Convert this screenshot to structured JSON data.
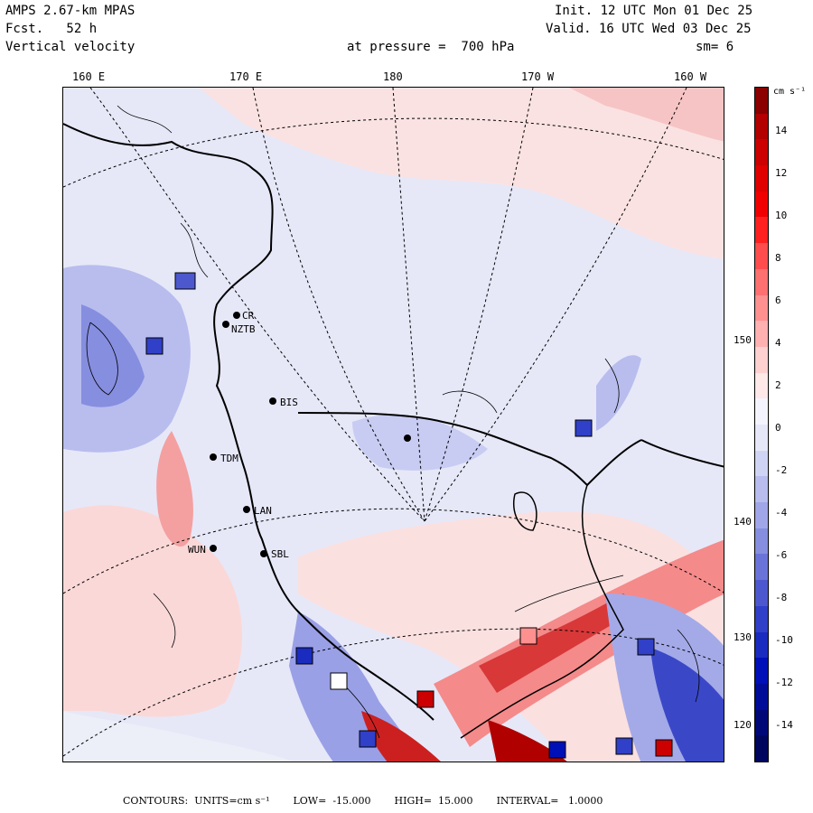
{
  "header": {
    "model": "AMPS 2.67-km MPAS",
    "forecast": "Fcst.   52 h",
    "field": "Vertical velocity",
    "init": "Init. 12 UTC Mon 01 Dec 25",
    "valid": "Valid. 16 UTC Wed 03 Dec 25",
    "pressure": "at pressure =  700 hPa",
    "smoothing": "sm= 6"
  },
  "longitude_labels": [
    "160 E",
    "170 E",
    "180",
    "170 W",
    "160 W"
  ],
  "latitude_labels": [
    "150 W",
    "140 W",
    "130 W",
    "120 W"
  ],
  "stations": [
    {
      "id": "CR",
      "label": "CR"
    },
    {
      "id": "NZTB",
      "label": "NZTB"
    },
    {
      "id": "BIS",
      "label": "BIS"
    },
    {
      "id": "TDM",
      "label": "TDM"
    },
    {
      "id": "LAN",
      "label": "LAN"
    },
    {
      "id": "WUN",
      "label": "WUN"
    },
    {
      "id": "SBL",
      "label": "SBL"
    }
  ],
  "colorbar": {
    "units": "cm s⁻¹",
    "ticks": [
      "14",
      "12",
      "10",
      "8",
      "6",
      "4",
      "2",
      "0",
      "-2",
      "-4",
      "-6",
      "-8",
      "-10",
      "-12",
      "-14"
    ],
    "colors": [
      "#8b0000",
      "#b30000",
      "#cc0000",
      "#e00000",
      "#f00000",
      "#ff2020",
      "#ff4d4d",
      "#ff7070",
      "#ff9090",
      "#ffb0b0",
      "#ffd0d0",
      "#ffe8e8",
      "#f4f4ff",
      "#e6e8f8",
      "#d0d4f4",
      "#b8bdee",
      "#a0a6e8",
      "#868ee0",
      "#6a74d8",
      "#4d58cf",
      "#3040c8",
      "#1a2bc0",
      "#0010b8",
      "#000c98",
      "#000878",
      "#00065e"
    ]
  },
  "footer": {
    "contours": "CONTOURS:  UNITS=cm s⁻¹",
    "low": "LOW=  -15.000",
    "high": "HIGH=  15.000",
    "interval": "INTERVAL=   1.0000"
  }
}
